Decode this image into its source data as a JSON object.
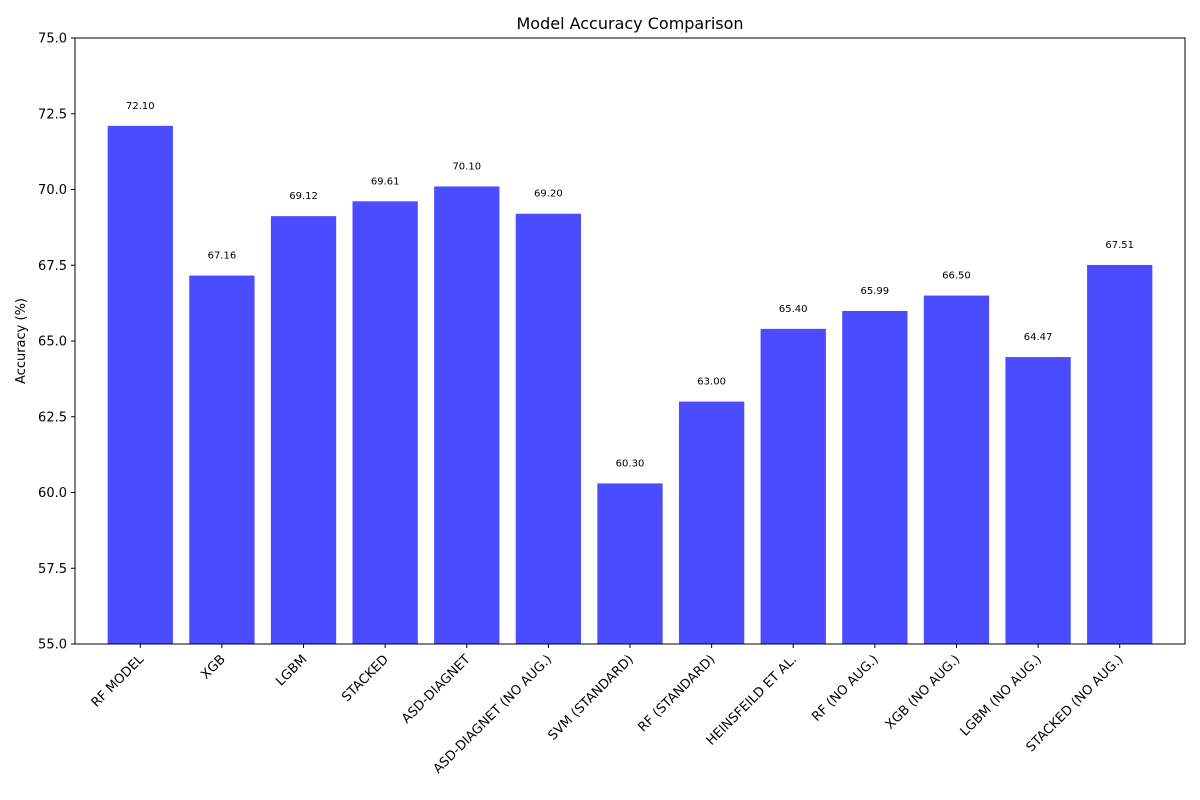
{
  "chart_data": {
    "type": "bar",
    "title": "Model Accuracy Comparison",
    "xlabel": "",
    "ylabel": "Accuracy (%)",
    "ylim": [
      55,
      75
    ],
    "yticks": [
      "55.0",
      "57.5",
      "60.0",
      "62.5",
      "65.0",
      "67.5",
      "70.0",
      "72.5",
      "75.0"
    ],
    "bar_color": "#4b4bff",
    "grid": false,
    "categories": [
      "RF MODEL",
      "XGB",
      "LGBM",
      "STACKED",
      "ASD-DIAGNET",
      "ASD-DIAGNET (NO AUG.)",
      "SVM (STANDARD)",
      "RF (STANDARD)",
      "HEINSFEILD ET AL.",
      "RF (NO AUG.)",
      "XGB (NO AUG.)",
      "LGBM (NO AUG.)",
      "STACKED (NO AUG.)"
    ],
    "values": [
      72.1,
      67.16,
      69.12,
      69.61,
      70.1,
      69.2,
      60.3,
      63.0,
      65.4,
      65.99,
      66.5,
      64.47,
      67.51
    ],
    "value_labels": [
      "72.10",
      "67.16",
      "69.12",
      "69.61",
      "70.10",
      "69.20",
      "60.30",
      "63.00",
      "65.40",
      "65.99",
      "66.50",
      "64.47",
      "67.51"
    ]
  }
}
